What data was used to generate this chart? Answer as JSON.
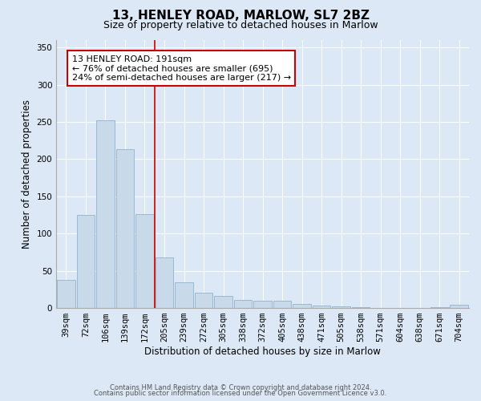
{
  "title_line1": "13, HENLEY ROAD, MARLOW, SL7 2BZ",
  "title_line2": "Size of property relative to detached houses in Marlow",
  "xlabel": "Distribution of detached houses by size in Marlow",
  "ylabel": "Number of detached properties",
  "bar_labels": [
    "39sqm",
    "72sqm",
    "106sqm",
    "139sqm",
    "172sqm",
    "205sqm",
    "239sqm",
    "272sqm",
    "305sqm",
    "338sqm",
    "372sqm",
    "405sqm",
    "438sqm",
    "471sqm",
    "505sqm",
    "538sqm",
    "571sqm",
    "604sqm",
    "638sqm",
    "671sqm",
    "704sqm"
  ],
  "bar_values": [
    38,
    125,
    252,
    213,
    126,
    68,
    35,
    21,
    16,
    11,
    10,
    10,
    6,
    3,
    2,
    1,
    0,
    0,
    0,
    1,
    4
  ],
  "bar_color": "#c8d9ea",
  "bar_edge_color": "#9ab8d0",
  "vline_color": "#cc0000",
  "annotation_text_line1": "13 HENLEY ROAD: 191sqm",
  "annotation_text_line2": "← 76% of detached houses are smaller (695)",
  "annotation_text_line3": "24% of semi-detached houses are larger (217) →",
  "ylim": [
    0,
    360
  ],
  "yticks": [
    0,
    50,
    100,
    150,
    200,
    250,
    300,
    350
  ],
  "background_color": "#dce8f5",
  "plot_bg_color": "#dce8f5",
  "footer_line1": "Contains HM Land Registry data © Crown copyright and database right 2024.",
  "footer_line2": "Contains public sector information licensed under the Open Government Licence v3.0.",
  "title_fontsize": 11,
  "subtitle_fontsize": 9,
  "axis_label_fontsize": 8.5,
  "tick_fontsize": 7.5,
  "annotation_fontsize": 8,
  "footer_fontsize": 6
}
